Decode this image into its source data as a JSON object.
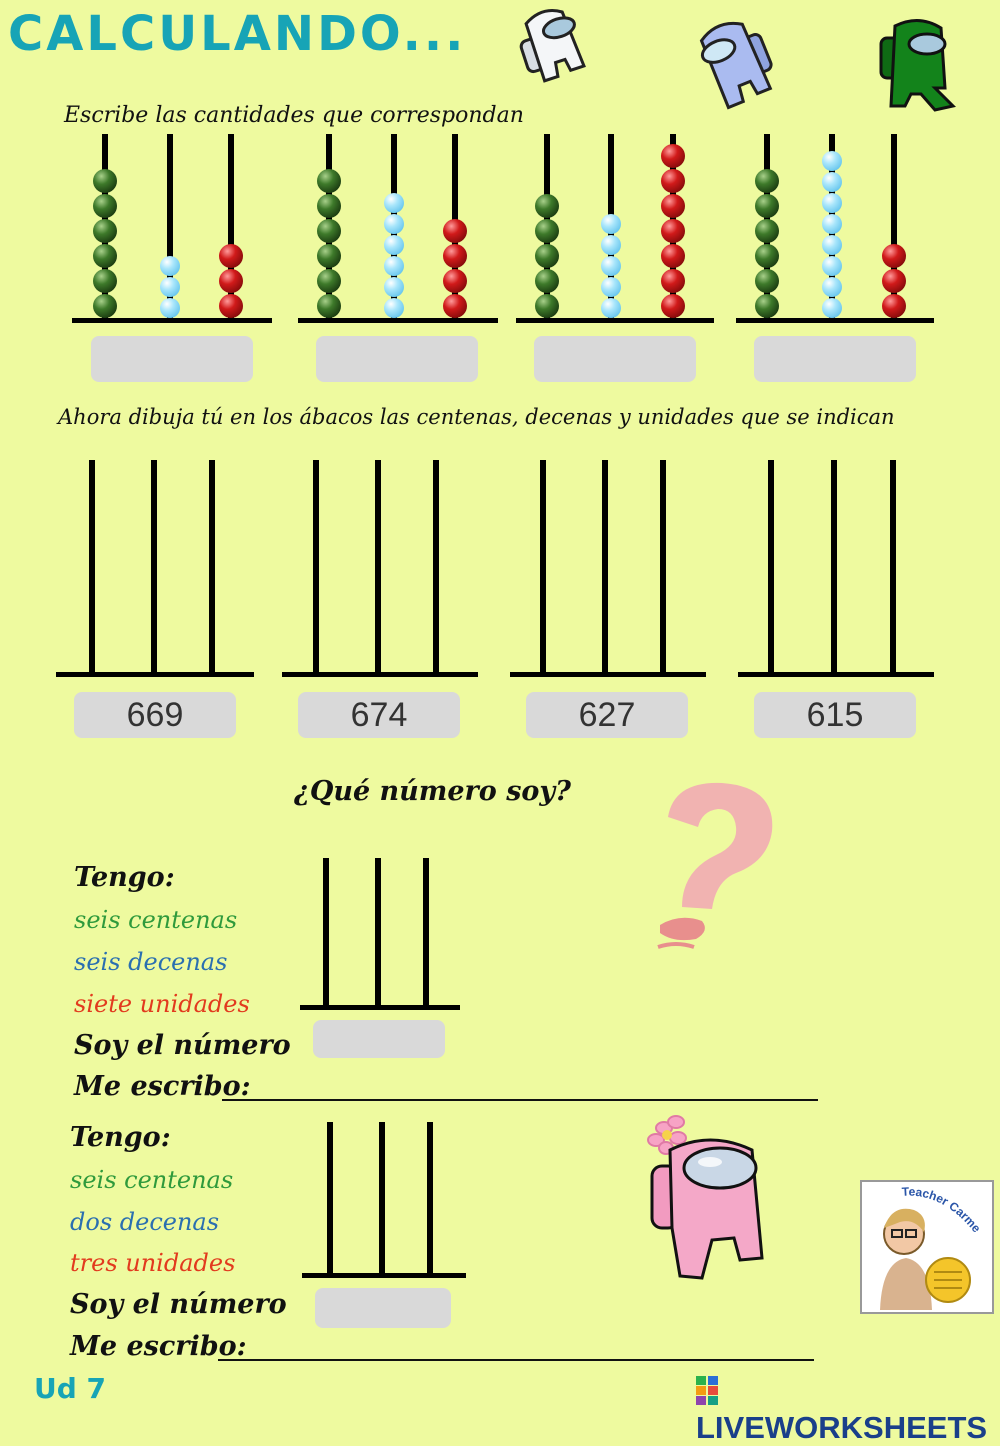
{
  "header": {
    "title": "CALCULANDO..."
  },
  "section1": {
    "instruction": "Escribe las cantidades que correspondan"
  },
  "section2": {
    "instruction": "Ahora dibuja tú en los ábacos las centenas, decenas y unidades que se indican",
    "numbers": [
      "669",
      "674",
      "627",
      "615"
    ]
  },
  "abacus_colors": {
    "centenas": "#2f5e1f",
    "decenas": "#8fd8f5",
    "unidades": "#c01818"
  },
  "abacus_counts_shown": [
    {
      "centenas": 6,
      "decenas": 3,
      "unidades": 3
    },
    {
      "centenas": 6,
      "decenas": 6,
      "unidades": 4
    },
    {
      "centenas": 5,
      "decenas": 5,
      "unidades": 7
    },
    {
      "centenas": 6,
      "decenas": 8,
      "unidades": 3
    }
  ],
  "section3": {
    "title": "¿Qué número soy?",
    "puzzles": [
      {
        "tengo": "Tengo:",
        "centenas": "seis centenas",
        "decenas": "seis decenas",
        "unidades": "siete unidades",
        "soy": "Soy el número",
        "me_escribo": "Me escribo:"
      },
      {
        "tengo": "Tengo:",
        "centenas": "seis centenas",
        "decenas": "dos decenas",
        "unidades": "tres unidades",
        "soy": "Soy el número",
        "me_escribo": "Me escribo:"
      }
    ]
  },
  "footer": {
    "unit": "Ud 7",
    "brand": "LIVEWORKSHEETS",
    "badge_text": "Teacher Carmen"
  },
  "icons": [
    "crewmate-white-icon",
    "crewmate-blue-icon",
    "crewmate-green-icon",
    "question-mark-icon",
    "crewmate-pink-icon"
  ]
}
